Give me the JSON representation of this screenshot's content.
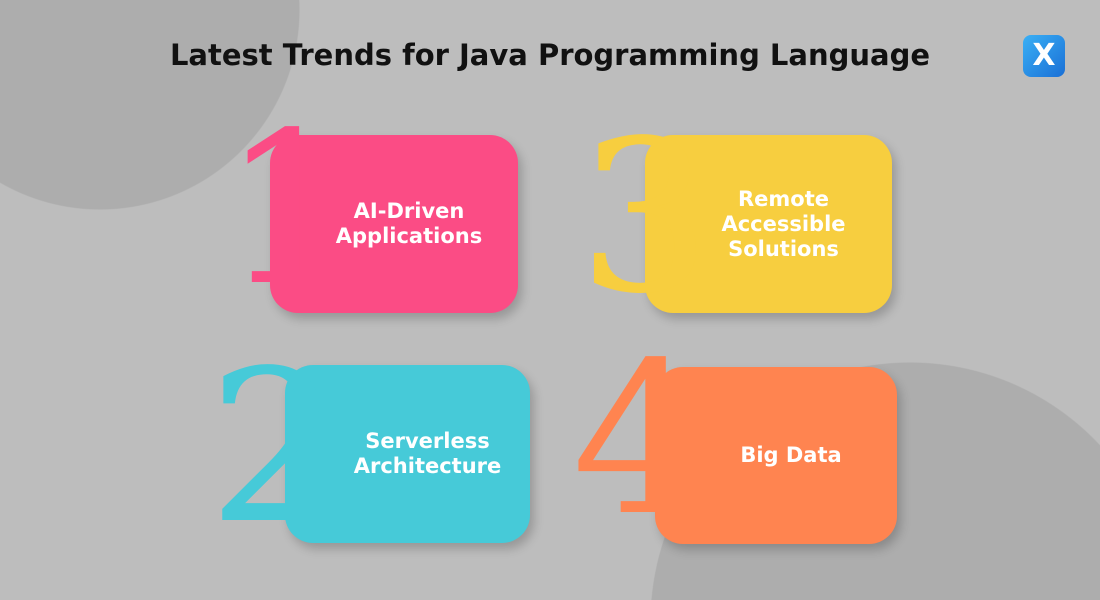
{
  "title": "Latest Trends for Java Programming Language",
  "logo": "X",
  "items": [
    {
      "number": "1",
      "label": "AI-Driven Applications",
      "color": "#fb4c85"
    },
    {
      "number": "2",
      "label": "Serverless Architecture",
      "color": "#46cad8"
    },
    {
      "number": "3",
      "label": "Remote Accessible Solutions",
      "color": "#f7ce3f"
    },
    {
      "number": "4",
      "label": "Big Data",
      "color": "#ff8450"
    }
  ]
}
